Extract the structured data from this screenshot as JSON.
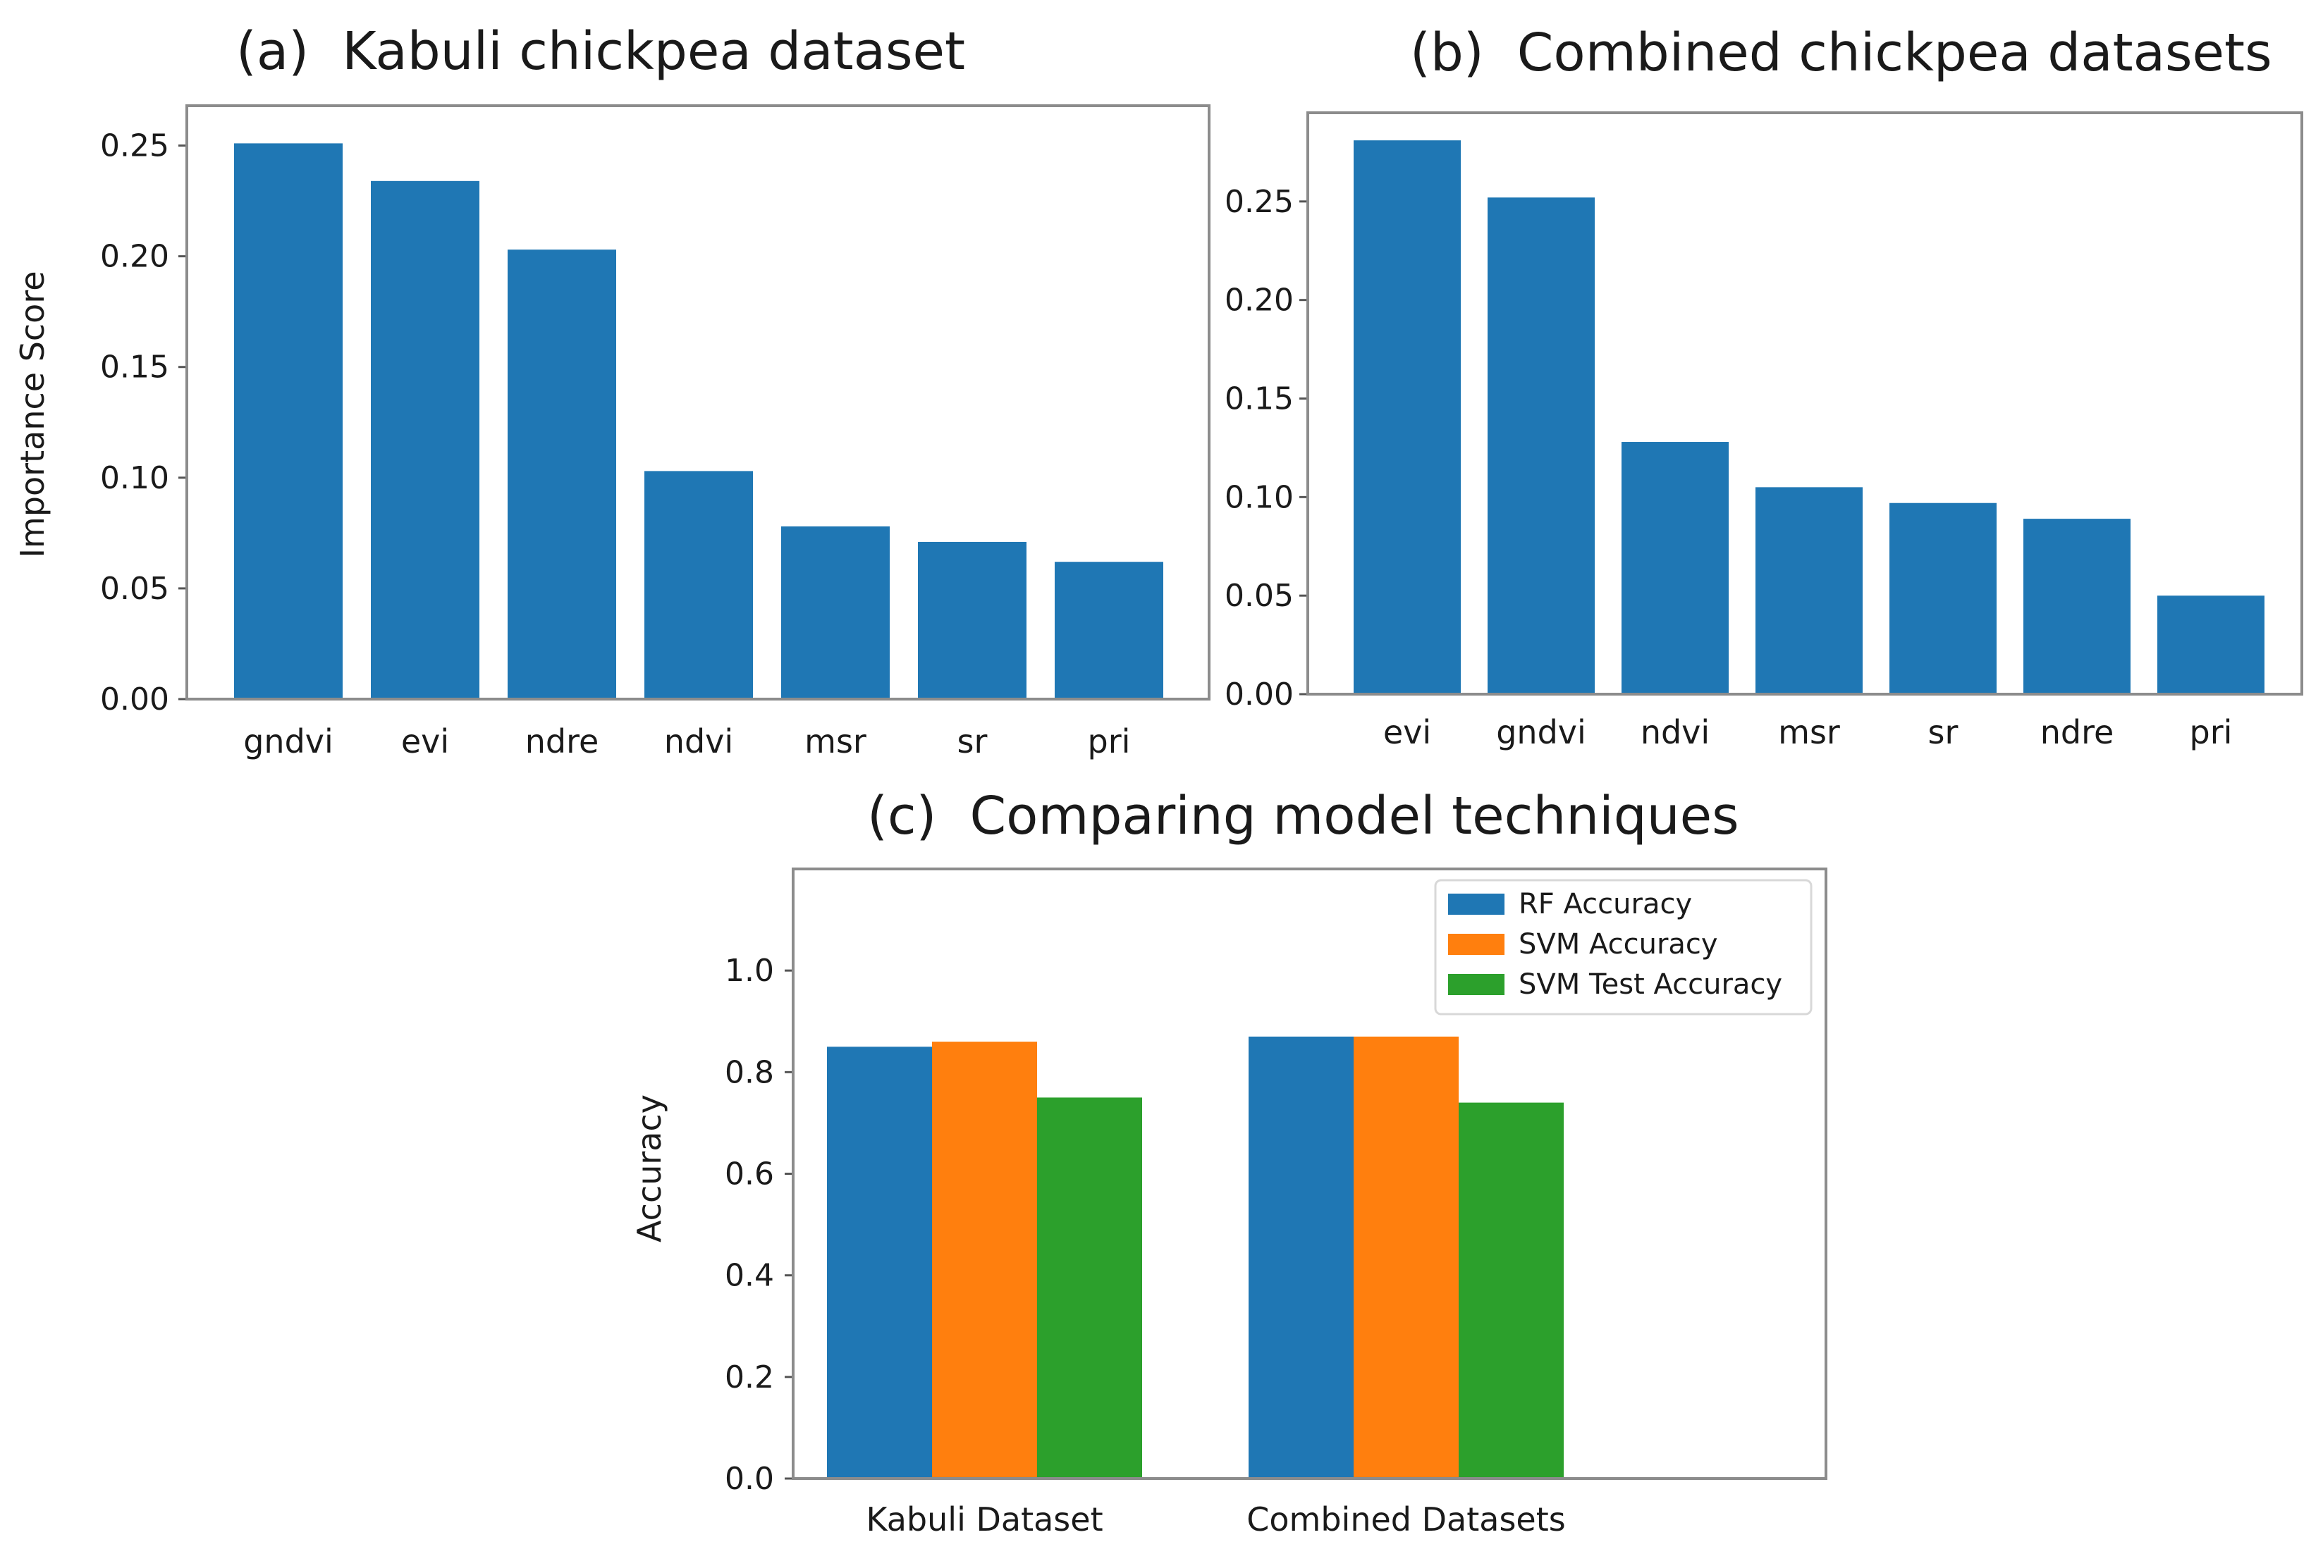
{
  "colors": {
    "rf": "#1f77b4",
    "svm": "#ff7f0e",
    "svm_test": "#2ca02c"
  },
  "chart_data": [
    {
      "type": "bar",
      "title": "(a)  Kabuli chickpea dataset",
      "xlabel": "",
      "ylabel": "Importance Score",
      "categories": [
        "gndvi",
        "evi",
        "ndre",
        "ndvi",
        "msr",
        "sr",
        "pri"
      ],
      "values": [
        0.251,
        0.234,
        0.203,
        0.103,
        0.078,
        0.071,
        0.062
      ],
      "ylim": [
        0,
        0.268
      ],
      "yticks": [
        0.0,
        0.05,
        0.1,
        0.15,
        0.2,
        0.25
      ],
      "ytick_labels": [
        "0.00",
        "0.05",
        "0.10",
        "0.15",
        "0.20",
        "0.25"
      ],
      "grid": false
    },
    {
      "type": "bar",
      "title": "(b)  Combined chickpea datasets",
      "xlabel": "",
      "ylabel": "",
      "categories": [
        "evi",
        "gndvi",
        "ndvi",
        "msr",
        "sr",
        "ndre",
        "pri"
      ],
      "values": [
        0.281,
        0.252,
        0.128,
        0.105,
        0.097,
        0.089,
        0.05
      ],
      "ylim": [
        0,
        0.295
      ],
      "yticks": [
        0.0,
        0.05,
        0.1,
        0.15,
        0.2,
        0.25
      ],
      "ytick_labels": [
        "0.00",
        "0.05",
        "0.10",
        "0.15",
        "0.20",
        "0.25"
      ],
      "grid": false
    },
    {
      "type": "bar",
      "title": "(c)  Comparing model techniques",
      "xlabel": "",
      "ylabel": "Accuracy",
      "categories": [
        "Kabuli Dataset",
        "Combined Datasets"
      ],
      "series": [
        {
          "name": "RF Accuracy",
          "color_key": "rf",
          "values": [
            0.85,
            0.87
          ]
        },
        {
          "name": "SVM Accuracy",
          "color_key": "svm",
          "values": [
            0.86,
            0.87
          ]
        },
        {
          "name": "SVM Test Accuracy",
          "color_key": "svm_test",
          "values": [
            0.75,
            0.74
          ]
        }
      ],
      "ylim": [
        0,
        1.2
      ],
      "yticks": [
        0.0,
        0.2,
        0.4,
        0.6,
        0.8,
        1.0
      ],
      "ytick_labels": [
        "0.0",
        "0.2",
        "0.4",
        "0.6",
        "0.8",
        "1.0"
      ],
      "legend": "top-right",
      "grid": false
    }
  ]
}
